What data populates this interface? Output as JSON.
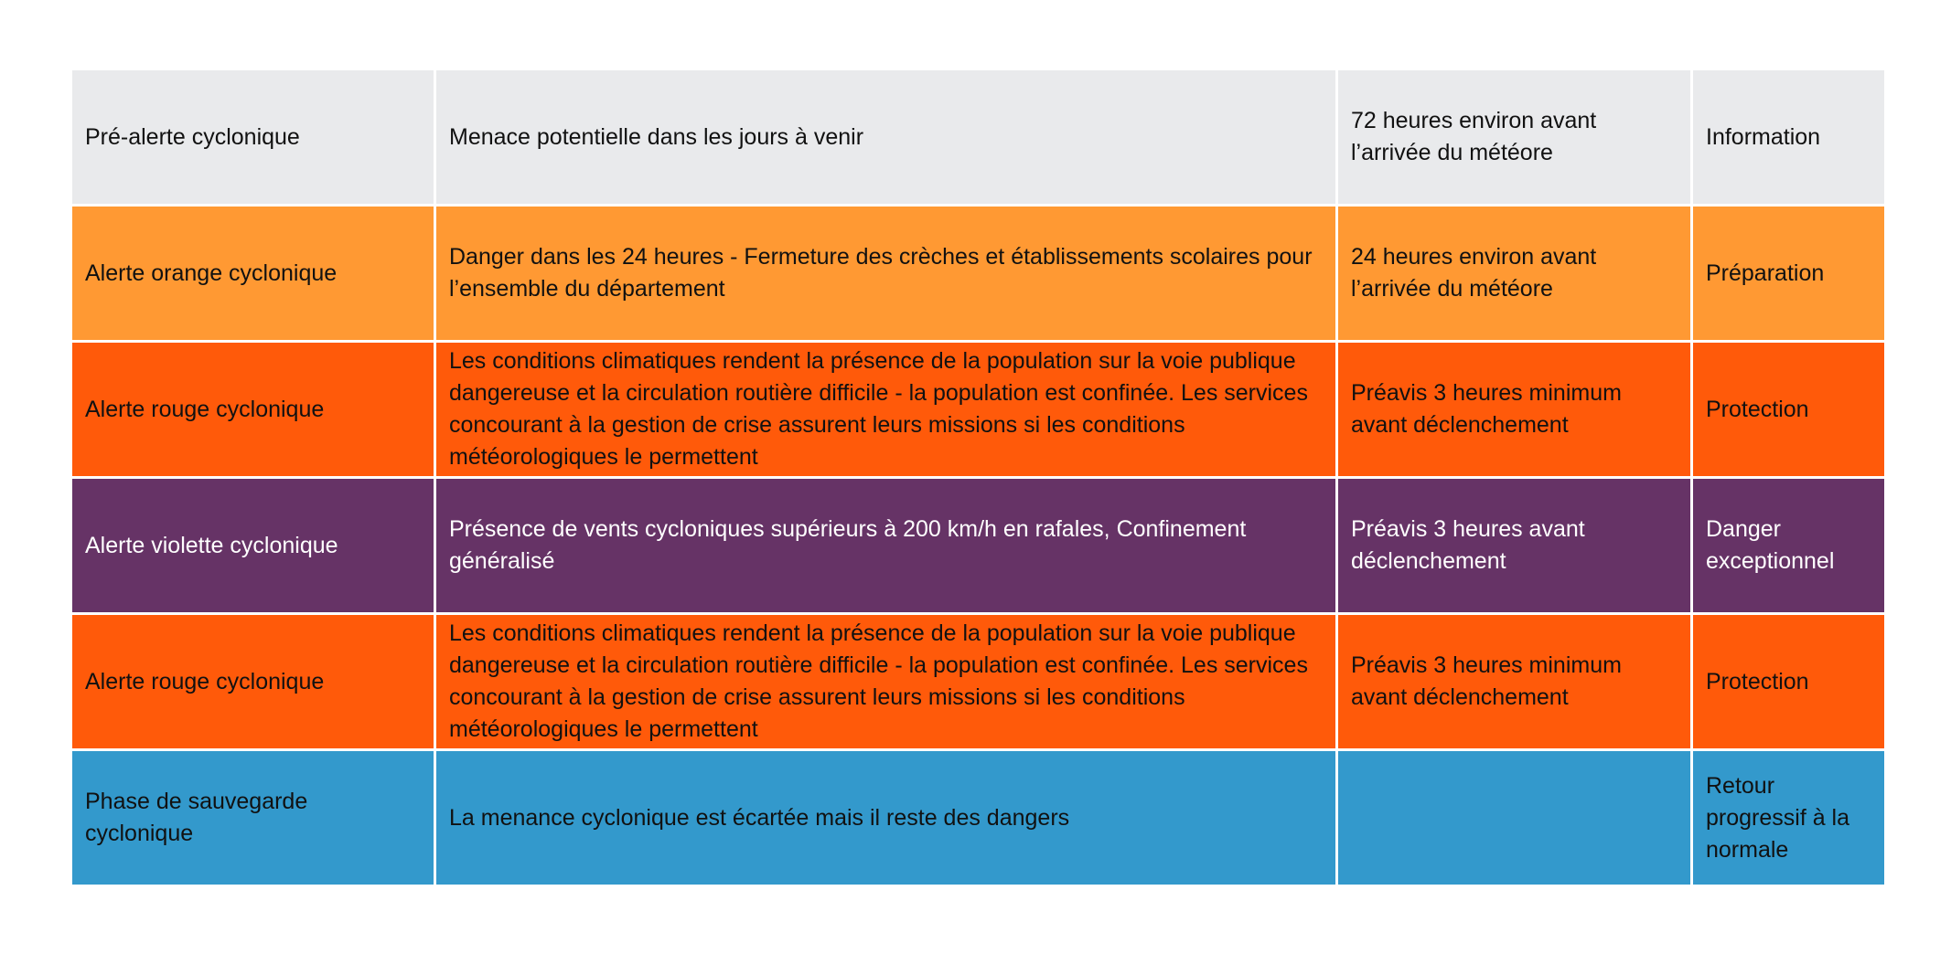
{
  "rows": [
    {
      "level": "Pré-alerte cyclonique",
      "description": "Menace potentielle dans les jours à venir",
      "timing": "72 heures environ avant l’arrivée du météore",
      "phase": "Information",
      "color": "#e9eaec"
    },
    {
      "level": "Alerte orange cyclonique",
      "description": "Danger dans les 24 heures - Fermeture des crèches et établissements scolaires pour l’ensemble du département",
      "timing": "24 heures environ avant l’arrivée du météore",
      "phase": "Préparation",
      "color": "#ff9933"
    },
    {
      "level": "Alerte rouge cyclonique",
      "description": "Les conditions climatiques rendent la présence de la population sur la voie publique dangereuse et la circulation routière difficile - la population est confinée. Les services concourant à la gestion de crise assurent leurs missions si les conditions météorologiques le permettent",
      "timing": "Préavis 3 heures minimum avant déclenchement",
      "phase": "Protection",
      "color": "#ff5a0a"
    },
    {
      "level": "Alerte violette cyclonique",
      "description": "Présence de vents cycloniques supérieurs à 200 km/h en rafales, Confinement généralisé",
      "timing": "Préavis 3 heures avant déclenchement",
      "phase": "Danger exceptionnel",
      "color": "#663366"
    },
    {
      "level": "Alerte rouge cyclonique",
      "description": "Les conditions climatiques rendent la présence de la population sur la voie publique dangereuse et la circulation routière difficile - la population est confinée. Les services concourant à la gestion de crise assurent leurs missions si les conditions météorologiques le permettent",
      "timing": "Préavis 3 heures minimum avant déclenchement",
      "phase": "Protection",
      "color": "#ff5a0a"
    },
    {
      "level": "Phase de sauvegarde cyclonique",
      "description": "La menance cyclonique est écartée mais il reste des dangers",
      "timing": "",
      "phase": "Retour progressif à la normale",
      "color": "#3399cc"
    }
  ]
}
